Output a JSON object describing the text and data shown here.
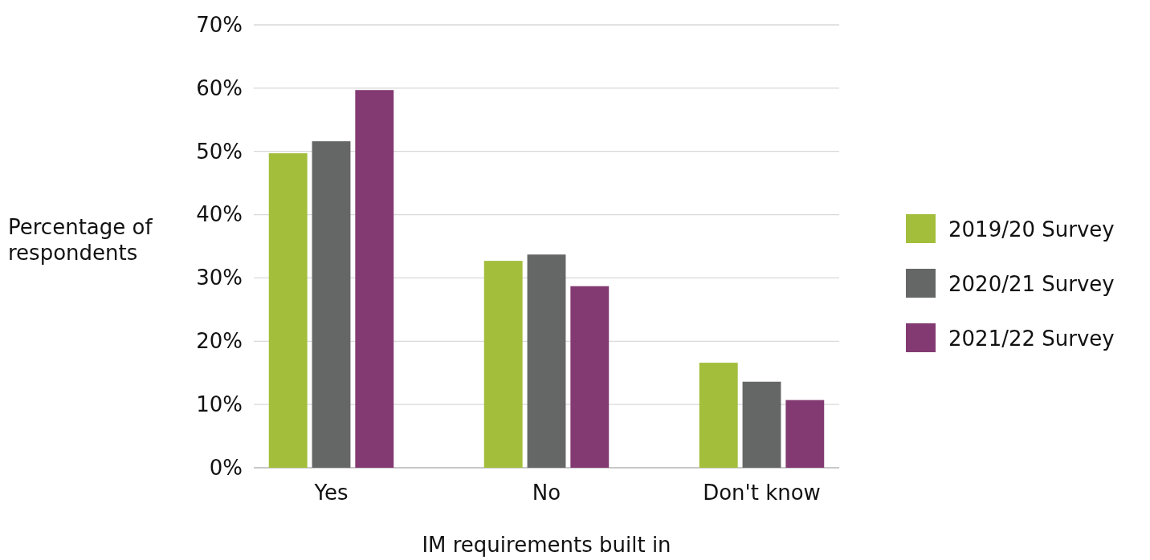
{
  "chart_data": {
    "type": "bar",
    "xlabel": "IM requirements built in",
    "ylabel": "Percentage of respondents",
    "categories": [
      "Yes",
      "No",
      "Don't know"
    ],
    "series": [
      {
        "name": "2019/20 Survey",
        "color": "#a3be3b",
        "values": [
          49.7,
          32.7,
          16.6
        ]
      },
      {
        "name": "2020/21 Survey",
        "color": "#656766",
        "values": [
          51.6,
          33.7,
          13.6
        ]
      },
      {
        "name": "2021/22 Survey",
        "color": "#833a72",
        "values": [
          59.7,
          28.7,
          10.7
        ]
      }
    ],
    "ylim": [
      0,
      70
    ],
    "yticks": [
      {
        "value": 0,
        "label": "0%"
      },
      {
        "value": 10,
        "label": "10%"
      },
      {
        "value": 20,
        "label": "20%"
      },
      {
        "value": 30,
        "label": "30%"
      },
      {
        "value": 40,
        "label": "40%"
      },
      {
        "value": 50,
        "label": "50%"
      },
      {
        "value": 60,
        "label": "60%"
      },
      {
        "value": 70,
        "label": "70%"
      }
    ],
    "grid": "y",
    "legend": "right"
  }
}
